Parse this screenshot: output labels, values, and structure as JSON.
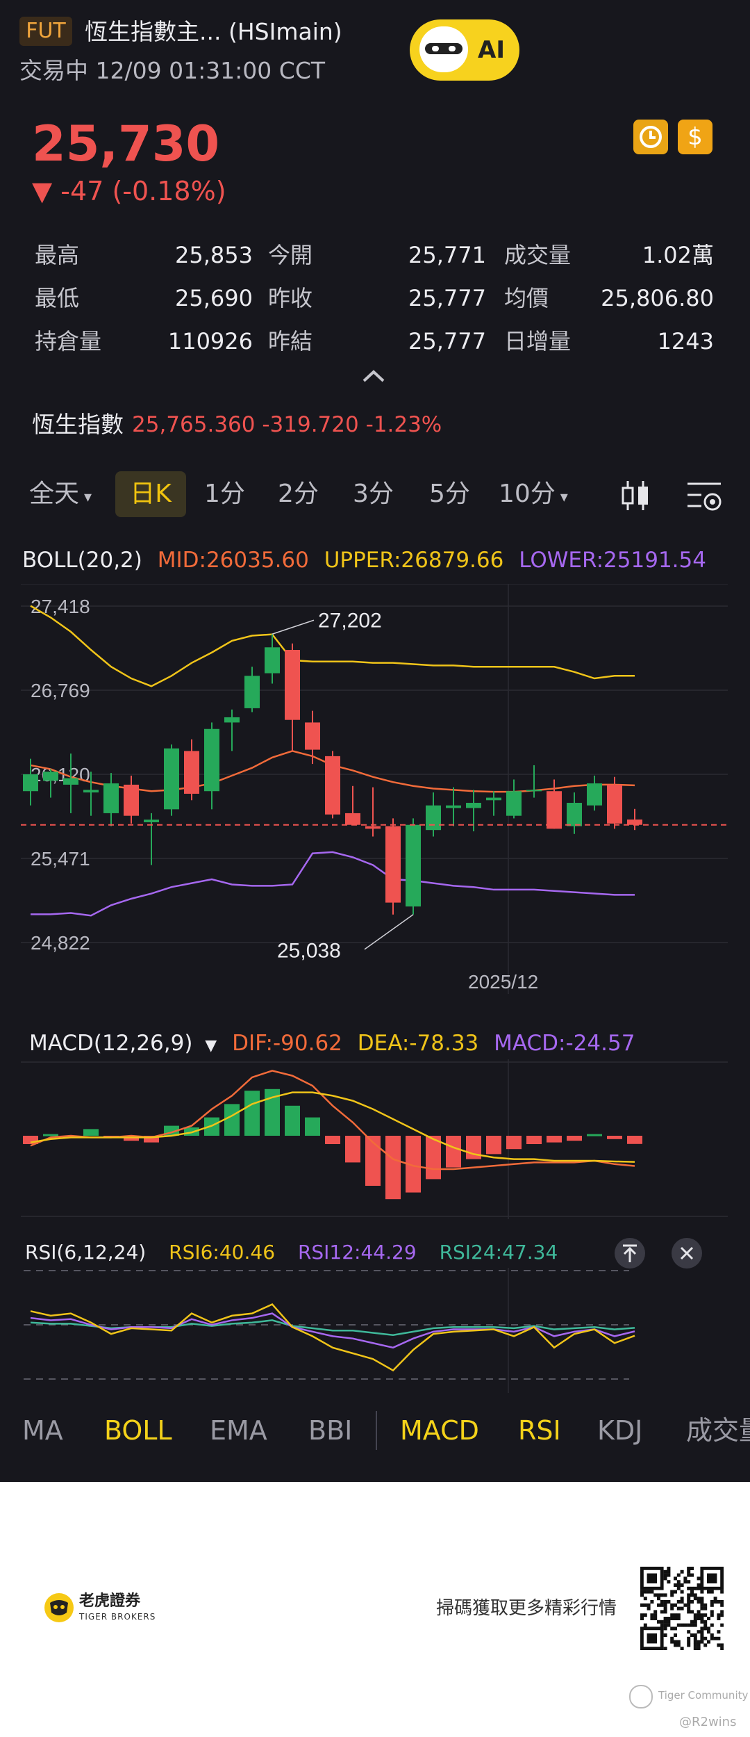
{
  "header": {
    "badge": "FUT",
    "title": "恆生指數主... (HSImain)",
    "status_line": "交易中 12/09 01:31:00 CCT",
    "ai_label": "AI"
  },
  "quote": {
    "price": "25,730",
    "change": "▼ -47 (-0.18%)",
    "stats": [
      {
        "label": "最高",
        "value": "25,853"
      },
      {
        "label": "今開",
        "value": "25,771"
      },
      {
        "label": "成交量",
        "value": "1.02萬"
      },
      {
        "label": "最低",
        "value": "25,690"
      },
      {
        "label": "昨收",
        "value": "25,777"
      },
      {
        "label": "均價",
        "value": "25,806.80"
      },
      {
        "label": "持倉量",
        "value": "110926"
      },
      {
        "label": "昨結",
        "value": "25,777"
      },
      {
        "label": "日增量",
        "value": "1243"
      }
    ]
  },
  "index_bar": {
    "label": "恆生指數",
    "value": "25,765.360 -319.720 -1.23%"
  },
  "period_tabs": {
    "all_day": "全天",
    "day_k": "日K",
    "m1": "1分",
    "m2": "2分",
    "m3": "3分",
    "m5": "5分",
    "m10": "10分"
  },
  "boll": {
    "name": "BOLL(20,2)",
    "mid": "MID:26035.60",
    "upper": "UPPER:26879.66",
    "lower": "LOWER:25191.54",
    "axis_labels": [
      "27,418",
      "26,769",
      "26,120",
      "25,471",
      "24,822"
    ],
    "high_label": "27,202",
    "low_label": "25,038",
    "date_label": "2025/12"
  },
  "macd": {
    "name": "MACD(12,26,9)",
    "dif": "DIF:-90.62",
    "dea": "DEA:-78.33",
    "macd": "MACD:-24.57"
  },
  "rsi": {
    "name": "RSI(6,12,24)",
    "rsi6": "RSI6:40.46",
    "rsi12": "RSI12:44.29",
    "rsi24": "RSI24:47.34"
  },
  "indicator_tabs": [
    "MA",
    "BOLL",
    "EMA",
    "BBI",
    "MACD",
    "RSI",
    "KDJ",
    "成交量"
  ],
  "footer": {
    "brand_cn": "老虎證券",
    "brand_en": "TIGER BROKERS",
    "slogan": "掃碼獲取更多精彩行情",
    "community": "Tiger Community",
    "handle": "@R2wins"
  },
  "colors": {
    "up": "#ef5350",
    "down": "#26a95a",
    "mid": "#f26b3a",
    "upper": "#f0c419",
    "lower": "#a668f0",
    "accent": "#f4d21a"
  },
  "chart_data": {
    "type": "candlestick",
    "y_axis_ticks": [
      27418,
      26769,
      26120,
      25471,
      24822
    ],
    "ylim": [
      24822,
      27418
    ],
    "x_labels": [
      "2025/12"
    ],
    "candles": [
      {
        "o": 25990,
        "h": 26240,
        "l": 25880,
        "c": 26120
      },
      {
        "o": 26070,
        "h": 26160,
        "l": 25940,
        "c": 26140
      },
      {
        "o": 26040,
        "h": 26280,
        "l": 25820,
        "c": 26090
      },
      {
        "o": 25980,
        "h": 26140,
        "l": 25800,
        "c": 26000
      },
      {
        "o": 25820,
        "h": 26130,
        "l": 25720,
        "c": 26050
      },
      {
        "o": 26040,
        "h": 26110,
        "l": 25740,
        "c": 25800
      },
      {
        "o": 25750,
        "h": 25820,
        "l": 25420,
        "c": 25770
      },
      {
        "o": 25850,
        "h": 26350,
        "l": 25800,
        "c": 26320
      },
      {
        "o": 26300,
        "h": 26390,
        "l": 25920,
        "c": 25970
      },
      {
        "o": 25990,
        "h": 26520,
        "l": 25850,
        "c": 26470
      },
      {
        "o": 26520,
        "h": 26620,
        "l": 26300,
        "c": 26560
      },
      {
        "o": 26630,
        "h": 26950,
        "l": 26600,
        "c": 26880
      },
      {
        "o": 26900,
        "h": 27202,
        "l": 26820,
        "c": 27100
      },
      {
        "o": 27080,
        "h": 27130,
        "l": 26300,
        "c": 26540
      },
      {
        "o": 26520,
        "h": 26610,
        "l": 26200,
        "c": 26310
      },
      {
        "o": 26260,
        "h": 26300,
        "l": 25780,
        "c": 25810
      },
      {
        "o": 25820,
        "h": 26030,
        "l": 25750,
        "c": 25730
      },
      {
        "o": 25720,
        "h": 26020,
        "l": 25640,
        "c": 25700
      },
      {
        "o": 25720,
        "h": 25780,
        "l": 25038,
        "c": 25130
      },
      {
        "o": 25100,
        "h": 25780,
        "l": 25038,
        "c": 25730
      },
      {
        "o": 25690,
        "h": 25980,
        "l": 25640,
        "c": 25880
      },
      {
        "o": 25860,
        "h": 26020,
        "l": 25720,
        "c": 25880
      },
      {
        "o": 25860,
        "h": 26000,
        "l": 25680,
        "c": 25900
      },
      {
        "o": 25920,
        "h": 25990,
        "l": 25800,
        "c": 25940
      },
      {
        "o": 25800,
        "h": 26080,
        "l": 25780,
        "c": 25990
      },
      {
        "o": 25990,
        "h": 26190,
        "l": 25940,
        "c": 26000
      },
      {
        "o": 25990,
        "h": 26080,
        "l": 25700,
        "c": 25700
      },
      {
        "o": 25720,
        "h": 25980,
        "l": 25660,
        "c": 25900
      },
      {
        "o": 25880,
        "h": 26110,
        "l": 25840,
        "c": 26050
      },
      {
        "o": 26040,
        "h": 26100,
        "l": 25700,
        "c": 25740
      },
      {
        "o": 25771,
        "h": 25853,
        "l": 25690,
        "c": 25730
      }
    ],
    "boll_mid": [
      26190,
      26160,
      26100,
      26060,
      26030,
      26010,
      25990,
      26000,
      26020,
      26050,
      26110,
      26170,
      26250,
      26300,
      26260,
      26190,
      26150,
      26100,
      26060,
      26030,
      26010,
      26000,
      25990,
      25985,
      25985,
      25995,
      26010,
      26030,
      26040,
      26040,
      26035
    ],
    "boll_upper": [
      27420,
      27330,
      27220,
      27080,
      26950,
      26860,
      26800,
      26880,
      26980,
      27060,
      27150,
      27190,
      27200,
      27000,
      26990,
      26990,
      26990,
      26980,
      26980,
      26970,
      26960,
      26960,
      26950,
      26950,
      26950,
      26950,
      26950,
      26910,
      26860,
      26880,
      26880
    ],
    "boll_lower": [
      25040,
      25040,
      25050,
      25030,
      25110,
      25160,
      25200,
      25250,
      25280,
      25310,
      25270,
      25260,
      25260,
      25270,
      25510,
      25520,
      25480,
      25420,
      25310,
      25300,
      25280,
      25260,
      25250,
      25230,
      25230,
      25230,
      25220,
      25210,
      25200,
      25190,
      25190
    ],
    "macd_hist": [
      -25,
      5,
      -5,
      20,
      -3,
      -15,
      -20,
      30,
      25,
      55,
      95,
      135,
      140,
      90,
      55,
      -25,
      -80,
      -150,
      -190,
      -170,
      -130,
      -95,
      -70,
      -55,
      -40,
      -25,
      -20,
      -15,
      5,
      -10,
      -24.57
    ],
    "macd_dif": [
      -30,
      -5,
      0,
      -5,
      -5,
      0,
      -5,
      10,
      30,
      80,
      120,
      175,
      195,
      180,
      150,
      90,
      40,
      -20,
      -70,
      -90,
      -100,
      -100,
      -95,
      -90,
      -85,
      -80,
      -80,
      -80,
      -75,
      -85,
      -90.62
    ],
    "macd_dea": [
      -20,
      -10,
      -5,
      -5,
      -5,
      -5,
      -5,
      0,
      10,
      30,
      60,
      95,
      115,
      130,
      130,
      120,
      105,
      80,
      50,
      20,
      -10,
      -35,
      -55,
      -65,
      -70,
      -70,
      -75,
      -75,
      -75,
      -77,
      -78.33
    ],
    "rsi6": [
      62,
      58,
      60,
      52,
      42,
      47,
      46,
      45,
      60,
      52,
      58,
      60,
      68,
      48,
      40,
      30,
      25,
      20,
      10,
      28,
      42,
      44,
      45,
      46,
      40,
      48,
      30,
      42,
      46,
      34,
      40.46
    ],
    "rsi12": [
      56,
      54,
      55,
      50,
      46,
      48,
      48,
      47,
      55,
      50,
      54,
      56,
      60,
      48,
      44,
      40,
      38,
      34,
      30,
      38,
      44,
      46,
      46,
      46,
      44,
      48,
      40,
      44,
      46,
      40,
      44.29
    ],
    "rsi24": [
      52,
      51,
      51,
      49,
      47,
      48,
      48,
      48,
      51,
      49,
      51,
      52,
      54,
      49,
      47,
      45,
      45,
      43,
      41,
      44,
      47,
      48,
      48,
      48,
      47,
      49,
      46,
      47,
      48,
      46,
      47.34
    ]
  }
}
